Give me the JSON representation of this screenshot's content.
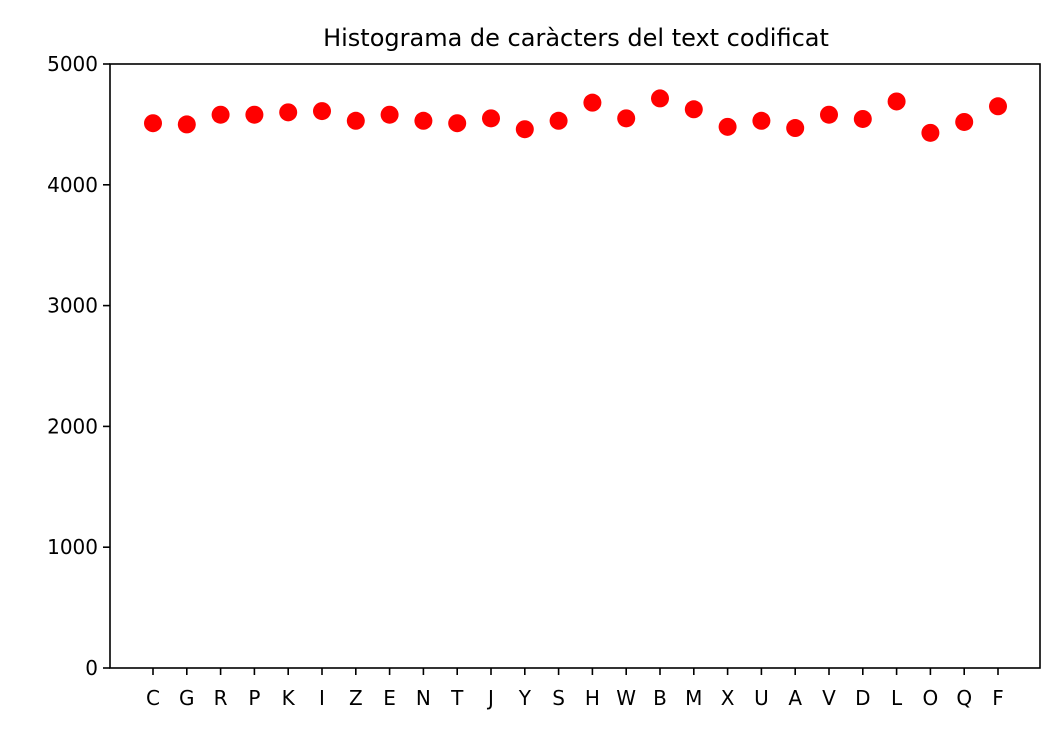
{
  "chart_data": {
    "type": "scatter",
    "title": "Histograma de caràcters del text codificat",
    "xlabel": "",
    "ylabel": "",
    "categories": [
      "C",
      "G",
      "R",
      "P",
      "K",
      "I",
      "Z",
      "E",
      "N",
      "T",
      "J",
      "Y",
      "S",
      "H",
      "W",
      "B",
      "M",
      "X",
      "U",
      "A",
      "V",
      "D",
      "L",
      "O",
      "Q",
      "F"
    ],
    "values": [
      4510,
      4500,
      4580,
      4580,
      4600,
      4610,
      4530,
      4580,
      4530,
      4510,
      4550,
      4460,
      4530,
      4680,
      4550,
      4715,
      4625,
      4480,
      4530,
      4470,
      4580,
      4545,
      4690,
      4430,
      4520,
      4650
    ],
    "ylim": [
      0,
      5000
    ],
    "yticks": [
      0,
      1000,
      2000,
      3000,
      4000,
      5000
    ],
    "grid": false,
    "legend": "none",
    "marker_color": "#ff0000"
  }
}
